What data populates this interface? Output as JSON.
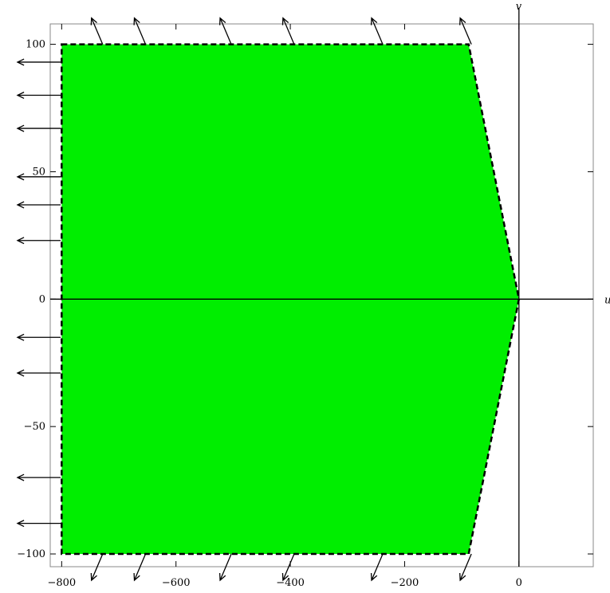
{
  "chart_data": {
    "type": "area",
    "title": "",
    "xlabel": "u",
    "ylabel": "v",
    "xlim": [
      -820,
      130
    ],
    "ylim": [
      -105,
      108
    ],
    "x_ticks": [
      {
        "value": -800,
        "label": "−800"
      },
      {
        "value": -600,
        "label": "−600"
      },
      {
        "value": -400,
        "label": "−400"
      },
      {
        "value": -200,
        "label": "−200"
      },
      {
        "value": 0,
        "label": "0"
      }
    ],
    "y_ticks": [
      {
        "value": 100,
        "label": "100"
      },
      {
        "value": 50,
        "label": "50"
      },
      {
        "value": 0,
        "label": "0"
      },
      {
        "value": -50,
        "label": "−50"
      },
      {
        "value": -100,
        "label": "−100"
      }
    ],
    "region": {
      "fill_color": "#00ee00",
      "boundary_style": "dashed",
      "boundary_color": "#000000",
      "vertices": [
        [
          -800,
          100
        ],
        [
          -88,
          100
        ],
        [
          0,
          0
        ],
        [
          -88,
          -100
        ],
        [
          -800,
          -100
        ]
      ]
    },
    "arrows": {
      "top": [
        -745,
        -670,
        -520,
        -410,
        -255,
        -100
      ],
      "bottom": [
        -745,
        -670,
        -520,
        -410,
        -255,
        -100
      ],
      "left": [
        93,
        80,
        67,
        48,
        37,
        23,
        -15,
        -29,
        -70,
        -88
      ]
    },
    "frame": true,
    "grid": false
  }
}
